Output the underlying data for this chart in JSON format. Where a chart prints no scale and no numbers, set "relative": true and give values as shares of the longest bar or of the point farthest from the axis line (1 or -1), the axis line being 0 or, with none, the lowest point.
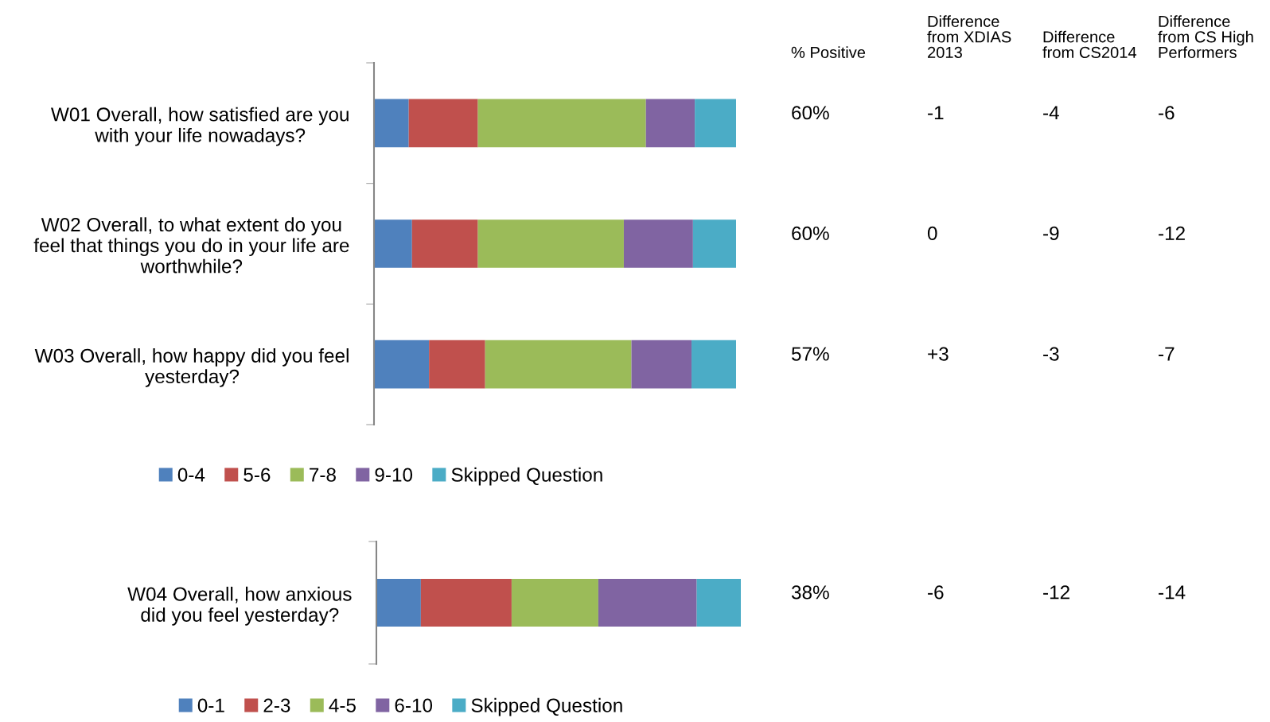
{
  "chart_data": [
    {
      "type": "bar",
      "orientation": "horizontal",
      "stacked": true,
      "relative": true,
      "legend": "bottom",
      "grid": false,
      "categories": [
        "W01 Overall, how satisfied are you\nwith your life nowadays?",
        "W02 Overall, to what extent do you\nfeel that things you do in your life are\nworthwhile?",
        "W03 Overall, how happy did you feel\nyesterday?"
      ],
      "series": [
        {
          "name": "0-4",
          "color": "#4f81bd",
          "values": [
            0.096,
            0.105,
            0.152
          ]
        },
        {
          "name": "5-6",
          "color": "#c0504d",
          "values": [
            0.191,
            0.182,
            0.155
          ]
        },
        {
          "name": "7-8",
          "color": "#9bbb59",
          "values": [
            0.464,
            0.403,
            0.404
          ]
        },
        {
          "name": "9-10",
          "color": "#8064a2",
          "values": [
            0.135,
            0.191,
            0.166
          ]
        },
        {
          "name": "Skipped Question",
          "color": "#4bacc6",
          "values": [
            0.114,
            0.119,
            0.123
          ]
        }
      ]
    },
    {
      "type": "bar",
      "orientation": "horizontal",
      "stacked": true,
      "relative": true,
      "legend": "bottom",
      "grid": false,
      "categories": [
        "W04 Overall, how anxious\ndid you feel yesterday?"
      ],
      "series": [
        {
          "name": "0-1",
          "color": "#4f81bd",
          "values": [
            0.122
          ]
        },
        {
          "name": "2-3",
          "color": "#c0504d",
          "values": [
            0.249
          ]
        },
        {
          "name": "4-5",
          "color": "#9bbb59",
          "values": [
            0.238
          ]
        },
        {
          "name": "6-10",
          "color": "#8064a2",
          "values": [
            0.27
          ]
        },
        {
          "name": "Skipped Question",
          "color": "#4bacc6",
          "values": [
            0.121
          ]
        }
      ]
    },
    {
      "type": "other",
      "categories": [
        "% Positive",
        "Difference\nfrom XDIAS\n2013",
        "Difference\nfrom CS2014",
        "Difference\nfrom CS High\nPerformers"
      ],
      "annotations": [
        "60%",
        "-1",
        "-4",
        "-6",
        "60%",
        "0",
        "-9",
        "-12",
        "57%",
        "+3",
        "-3",
        "-7",
        "38%",
        "-6",
        "-12",
        "-14"
      ]
    }
  ]
}
